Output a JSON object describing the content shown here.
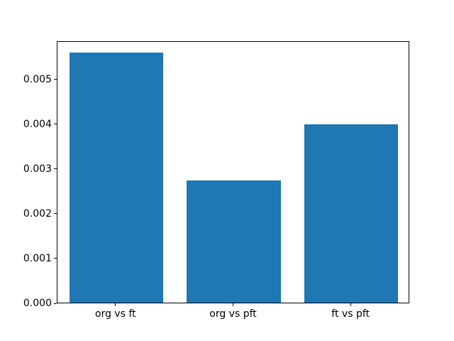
{
  "figure": {
    "background_color": "#ffffff",
    "spine_color": "#000000",
    "tick_text_color": "#000000"
  },
  "chart_data": {
    "type": "bar",
    "categories": [
      "org vs ft",
      "org vs pft",
      "ft vs pft"
    ],
    "values": [
      0.00558,
      0.00272,
      0.00398
    ],
    "bar_color": "#1f77b4",
    "title": "",
    "xlabel": "",
    "ylabel": "",
    "ylim": [
      0,
      0.00585
    ],
    "yticks": [
      0,
      0.001,
      0.002,
      0.003,
      0.004,
      0.005
    ],
    "ytick_labels": [
      "0.000",
      "0.001",
      "0.002",
      "0.003",
      "0.004",
      "0.005"
    ],
    "grid": false,
    "legend": null,
    "bar_width_fraction": 0.8
  }
}
